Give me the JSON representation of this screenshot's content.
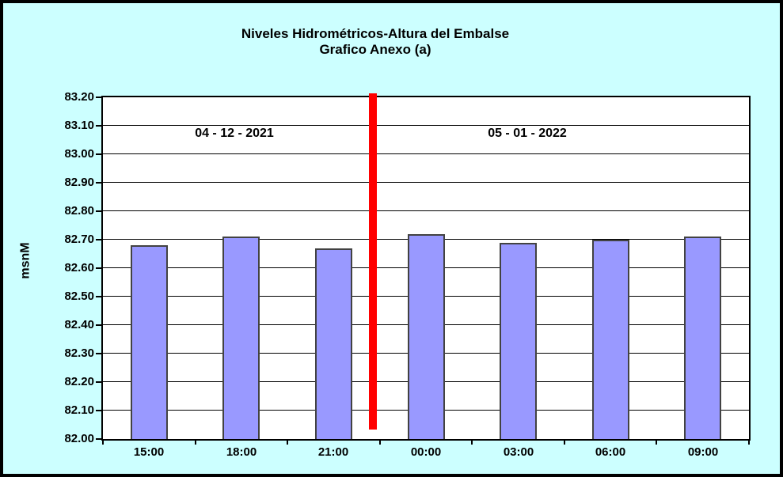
{
  "title": {
    "line1": "Niveles Hidrométricos-Altura del Embalse",
    "line2": "Grafico Anexo (a)"
  },
  "annotations": {
    "left_date": "04 - 12 - 2021",
    "right_date": "05 - 01 - 2022"
  },
  "chart_data": {
    "type": "bar",
    "title": "Niveles Hidrométricos-Altura del Embalse — Grafico Anexo (a)",
    "categories": [
      "15:00",
      "18:00",
      "21:00",
      "00:00",
      "03:00",
      "06:00",
      "09:00"
    ],
    "values": [
      82.68,
      82.71,
      82.67,
      82.72,
      82.69,
      82.7,
      82.71
    ],
    "ylabel": "msnM",
    "xlabel": "",
    "ylim": [
      82.0,
      83.2
    ],
    "ytick_step": 0.1,
    "ytick_labels": [
      "83.20",
      "83.10",
      "83.00",
      "82.90",
      "82.80",
      "82.70",
      "82.60",
      "82.50",
      "82.40",
      "82.30",
      "82.20",
      "82.10",
      "82.00"
    ],
    "grid": true,
    "legend_position": "none",
    "separator": {
      "after_category_index": 2,
      "label_left": "04 - 12 - 2021",
      "label_right": "05 - 01 - 2022"
    }
  },
  "colors": {
    "canvas_background": "#CCFFFF",
    "plot_background": "#FFFFFF",
    "bar_fill": "#9999FF",
    "bar_border": "#424242",
    "gridline": "#000000",
    "axis": "#000000",
    "separator_line": "#FF0000",
    "text": "#000000"
  }
}
